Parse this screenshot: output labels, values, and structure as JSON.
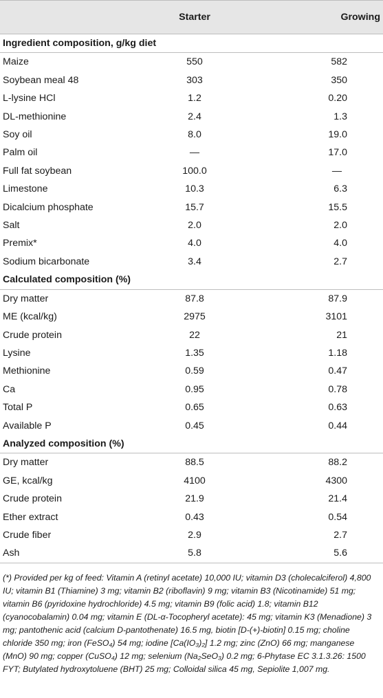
{
  "table": {
    "headers": [
      "",
      "Starter",
      "Growing"
    ],
    "sections": [
      {
        "title": "Ingredient composition, g/kg diet",
        "rows": [
          [
            "Maize",
            "550",
            "582"
          ],
          [
            "Soybean meal 48",
            "303",
            "350"
          ],
          [
            "L-lysine HCl",
            "1.2",
            "0.20"
          ],
          [
            "DL-methionine",
            "2.4",
            "1.3"
          ],
          [
            "Soy oil",
            "8.0",
            "19.0"
          ],
          [
            "Palm oil",
            "—",
            "17.0"
          ],
          [
            "Full fat soybean",
            "100.0",
            "—"
          ],
          [
            "Limestone",
            "10.3",
            "6.3"
          ],
          [
            "Dicalcium phosphate",
            "15.7",
            "15.5"
          ],
          [
            "Salt",
            "2.0",
            "2.0"
          ],
          [
            "Premix*",
            "4.0",
            "4.0"
          ],
          [
            "Sodium bicarbonate",
            "3.4",
            "2.7"
          ]
        ]
      },
      {
        "title": "Calculated composition (%)",
        "rows": [
          [
            "Dry matter",
            "87.8",
            "87.9"
          ],
          [
            "ME (kcal/kg)",
            "2975",
            "3101"
          ],
          [
            "Crude protein",
            "22",
            "21"
          ],
          [
            "Lysine",
            "1.35",
            "1.18"
          ],
          [
            "Methionine",
            "0.59",
            "0.47"
          ],
          [
            "Ca",
            "0.95",
            "0.78"
          ],
          [
            "Total P",
            "0.65",
            "0.63"
          ],
          [
            "Available P",
            "0.45",
            "0.44"
          ]
        ]
      },
      {
        "title": "Analyzed composition (%)",
        "rows": [
          [
            "Dry matter",
            "88.5",
            "88.2"
          ],
          [
            "GE, kcal/kg",
            "4100",
            "4300"
          ],
          [
            "Crude protein",
            "21.9",
            "21.4"
          ],
          [
            "Ether extract",
            "0.43",
            "0.54"
          ],
          [
            "Crude fiber",
            "2.9",
            "2.7"
          ],
          [
            "Ash",
            "5.8",
            "5.6"
          ]
        ]
      }
    ]
  },
  "footnote": "(*) Provided per kg of feed: Vitamin A (retinyl acetate) 10,000 IU; vitamin D3 (cholecalciferol) 4,800 IU; vitamin B1 (Thiamine) 3 mg; vitamin B2 (riboflavin) 9 mg; vitamin B3 (Nicotinamide) 51 mg; vitamin B6 (pyridoxine hydrochloride) 4.5 mg; vitamin B9 (folic acid) 1.8; vitamin B12 (cyanocobalamin) 0.04 mg; vitamin E (DL-α-Tocopheryl acetate): 45 mg; vitamin K3 (Menadione) 3 mg; pantothenic acid (calcium D-pantothenate) 16.5 mg, biotin [D-(+)-biotin] 0.15 mg; choline chloride 350 mg; iron (FeSO₄) 54 mg; iodine [Ca(IO₃)₂] 1.2 mg; zinc (ZnO) 66 mg; manganese (MnO) 90 mg; copper (CuSO₄) 12 mg; selenium (Na₂SeO₃) 0.2 mg; 6-Phytase EC 3.1.3.26: 1500 FYT; Butylated hydroxytoluene (BHT) 25 mg; Colloidal silica 45 mg, Sepiolite 1,007 mg."
}
